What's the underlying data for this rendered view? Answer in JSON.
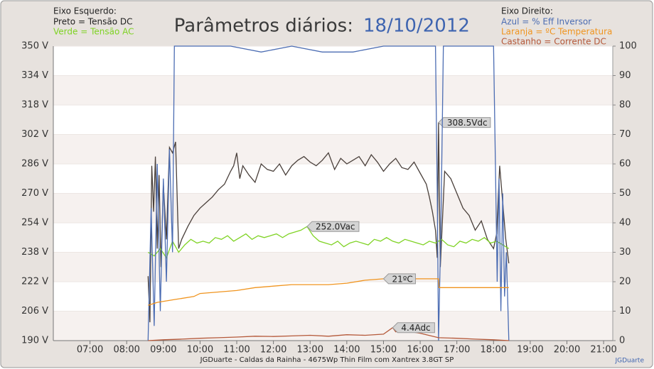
{
  "chart_data": {
    "type": "line",
    "left_axis_heading": "Eixo Esquerdo:",
    "right_axis_heading": "Eixo Direito:",
    "title": "Parâmetros diários:",
    "subtitle": "18/10/2012",
    "footer": "JGDuarte  -  Caldas da Rainha  -  4675Wp Thin Film com Xantrex 3.8GT SP",
    "credit": "JGDuarte",
    "xlim": [
      360,
      1275
    ],
    "xticks": [
      {
        "value": 420,
        "label": "07:00"
      },
      {
        "value": 480,
        "label": "08:00"
      },
      {
        "value": 540,
        "label": "09:00"
      },
      {
        "value": 600,
        "label": "10:00"
      },
      {
        "value": 660,
        "label": "11:00"
      },
      {
        "value": 720,
        "label": "12:00"
      },
      {
        "value": 780,
        "label": "13:00"
      },
      {
        "value": 840,
        "label": "14:00"
      },
      {
        "value": 900,
        "label": "15:00"
      },
      {
        "value": 960,
        "label": "16:00"
      },
      {
        "value": 1020,
        "label": "17:00"
      },
      {
        "value": 1080,
        "label": "18:00"
      },
      {
        "value": 1140,
        "label": "19:00"
      },
      {
        "value": 1200,
        "label": "20:00"
      },
      {
        "value": 1260,
        "label": "21:00"
      }
    ],
    "ylim": [
      190,
      350
    ],
    "yticks": [
      {
        "value": 190,
        "label": "190 V"
      },
      {
        "value": 206,
        "label": "206 V"
      },
      {
        "value": 222,
        "label": "222 V"
      },
      {
        "value": 238,
        "label": "238 V"
      },
      {
        "value": 254,
        "label": "254 V"
      },
      {
        "value": 270,
        "label": "270 V"
      },
      {
        "value": 286,
        "label": "286 V"
      },
      {
        "value": 302,
        "label": "302 V"
      },
      {
        "value": 318,
        "label": "318 V"
      },
      {
        "value": 334,
        "label": "334 V"
      },
      {
        "value": 350,
        "label": "350 V"
      }
    ],
    "y2lim": [
      0,
      100
    ],
    "y2ticks": [
      0,
      10,
      20,
      30,
      40,
      50,
      60,
      70,
      80,
      90,
      100
    ],
    "grid": true,
    "series": [
      {
        "name": "Preto = Tensão DC",
        "color": "#4a403b",
        "peak_label": "308.5Vdc",
        "x": [
          515,
          518,
          521,
          524,
          527,
          530,
          533,
          536,
          540,
          545,
          550,
          555,
          560,
          565,
          570,
          580,
          590,
          600,
          610,
          620,
          630,
          640,
          650,
          655,
          660,
          665,
          670,
          680,
          690,
          700,
          710,
          720,
          730,
          740,
          750,
          760,
          770,
          780,
          790,
          800,
          810,
          820,
          830,
          840,
          850,
          860,
          870,
          880,
          890,
          900,
          910,
          920,
          930,
          940,
          950,
          960,
          970,
          975,
          980,
          985,
          988,
          990,
          993,
          1000,
          1010,
          1020,
          1030,
          1040,
          1050,
          1060,
          1070,
          1080,
          1085,
          1090,
          1095,
          1100,
          1105
        ],
        "values": [
          225,
          200,
          285,
          260,
          290,
          240,
          280,
          230,
          275,
          245,
          295,
          292,
          298,
          240,
          245,
          252,
          258,
          262,
          265,
          268,
          272,
          275,
          282,
          285,
          292,
          278,
          285,
          280,
          276,
          286,
          283,
          282,
          286,
          280,
          285,
          288,
          290,
          287,
          285,
          288,
          292,
          283,
          289,
          286,
          288,
          290,
          285,
          291,
          287,
          282,
          286,
          289,
          284,
          283,
          287,
          281,
          275,
          268,
          260,
          250,
          235,
          308.5,
          230,
          282,
          278,
          270,
          262,
          258,
          250,
          255,
          245,
          240,
          248,
          285,
          265,
          245,
          232
        ]
      },
      {
        "name": "Verde = Tensão AC",
        "color": "#7fd324",
        "peak_label": "252.0Vac",
        "x": [
          515,
          525,
          535,
          545,
          555,
          565,
          575,
          585,
          595,
          605,
          615,
          625,
          635,
          645,
          655,
          665,
          675,
          685,
          695,
          705,
          715,
          725,
          735,
          745,
          755,
          765,
          775,
          785,
          795,
          805,
          815,
          825,
          835,
          845,
          855,
          865,
          875,
          885,
          895,
          905,
          915,
          925,
          935,
          945,
          955,
          965,
          975,
          985,
          995,
          1005,
          1015,
          1025,
          1035,
          1045,
          1055,
          1065,
          1075,
          1085,
          1095,
          1105
        ],
        "values": [
          238,
          236,
          240,
          235,
          244,
          238,
          242,
          245,
          243,
          244,
          243,
          246,
          245,
          247,
          244,
          246,
          248,
          245,
          247,
          246,
          247,
          248,
          246,
          248,
          249,
          250,
          252,
          247,
          244,
          243,
          242,
          244,
          241,
          243,
          244,
          243,
          242,
          245,
          244,
          246,
          244,
          243,
          245,
          244,
          243,
          242,
          244,
          243,
          245,
          242,
          241,
          244,
          243,
          245,
          244,
          246,
          243,
          244,
          242,
          240
        ]
      },
      {
        "name": "Azul = % Eff Inversor",
        "color": "#4c6db3",
        "axis": "y2",
        "x": [
          515,
          520,
          525,
          530,
          535,
          540,
          545,
          550,
          555,
          558,
          560,
          600,
          650,
          700,
          750,
          800,
          850,
          900,
          950,
          985,
          988,
          990,
          994,
          998,
          1000,
          1050,
          1080,
          1083,
          1086,
          1089,
          1092,
          1095,
          1098,
          1101,
          1105
        ],
        "values": [
          0,
          45,
          5,
          60,
          10,
          55,
          20,
          65,
          30,
          100,
          100,
          100,
          100,
          98,
          100,
          98,
          98,
          100,
          100,
          100,
          50,
          0,
          40,
          100,
          100,
          100,
          100,
          60,
          20,
          55,
          10,
          50,
          15,
          30,
          0
        ]
      },
      {
        "name": "Laranja = ºC Temperatura",
        "color": "#f0941e",
        "axis": "y2",
        "peak_label": "21ºC",
        "x": [
          515,
          530,
          560,
          590,
          600,
          630,
          660,
          690,
          720,
          750,
          780,
          810,
          840,
          870,
          900,
          930,
          960,
          990,
          991,
          1100,
          1105
        ],
        "values": [
          12,
          13,
          14,
          15,
          16,
          16.5,
          17,
          18,
          18.5,
          19,
          19,
          19,
          19.5,
          20.5,
          21,
          21,
          21,
          21,
          18,
          18,
          18
        ]
      },
      {
        "name": "Castanho = Corrente DC",
        "color": "#b5593a",
        "axis": "y2",
        "peak_label": "4.4Adc",
        "x": [
          515,
          540,
          570,
          600,
          630,
          660,
          690,
          720,
          750,
          780,
          810,
          840,
          870,
          900,
          915,
          920,
          930,
          960,
          990,
          1020,
          1050,
          1080,
          1105
        ],
        "values": [
          0,
          0.3,
          0.5,
          0.8,
          1,
          1.2,
          1.5,
          1.4,
          1.6,
          1.8,
          1.5,
          2,
          1.8,
          2.2,
          4.4,
          3,
          3.5,
          2.5,
          1,
          0.8,
          0.5,
          0.3,
          0
        ]
      }
    ]
  }
}
